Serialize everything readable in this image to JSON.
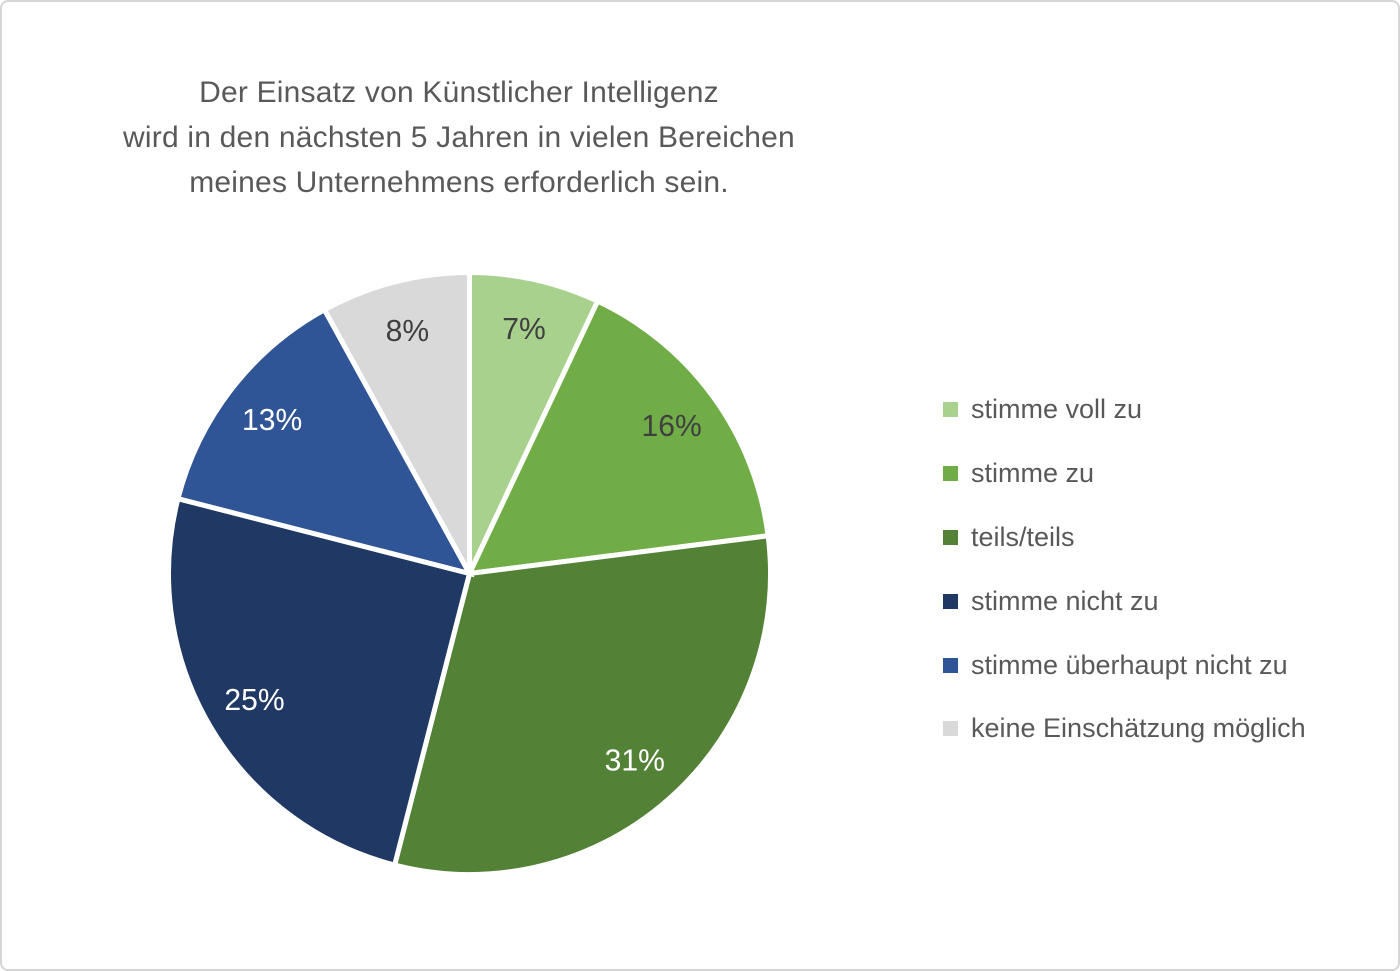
{
  "frame": {
    "background": "#ffffff",
    "border_color": "#d6d6d6"
  },
  "chart_data": {
    "type": "pie",
    "title": "Der Einsatz von Künstlicher Intelligenz wird in den nächsten 5 Jahren in vielen Bereichen meines Unternehmens erforderlich sein.",
    "title_lines": [
      "Der Einsatz von Künstlicher Intelligenz",
      "wird in den nächsten 5 Jahren in vielen Bereichen",
      "meines Unternehmens erforderlich sein."
    ],
    "title_color": "#595959",
    "start_angle": "top",
    "direction": "clockwise",
    "separator_color": "#ffffff",
    "legend_position": "right",
    "legend_text_color": "#595959",
    "slices": [
      {
        "label": "stimme voll zu",
        "value": 7,
        "display": "7%",
        "color": "#A9D18E",
        "label_color": "#404040"
      },
      {
        "label": "stimme zu",
        "value": 16,
        "display": "16%",
        "color": "#70AD47",
        "label_color": "#404040"
      },
      {
        "label": "teils/teils",
        "value": 31,
        "display": "31%",
        "color": "#538135",
        "label_color": "#FFFFFF"
      },
      {
        "label": "stimme nicht zu",
        "value": 25,
        "display": "25%",
        "color": "#1F3864",
        "label_color": "#FFFFFF"
      },
      {
        "label": "stimme überhaupt nicht zu",
        "value": 13,
        "display": "13%",
        "color": "#2F5597",
        "label_color": "#FFFFFF"
      },
      {
        "label": "keine Einschätzung möglich",
        "value": 8,
        "display": "8%",
        "color": "#D9D9D9",
        "label_color": "#404040"
      }
    ]
  }
}
